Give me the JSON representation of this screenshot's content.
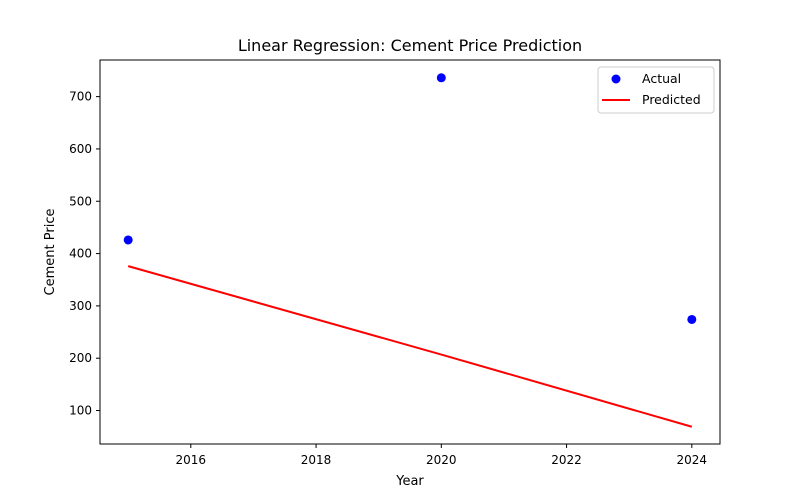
{
  "chart_data": {
    "type": "scatter",
    "title": "Linear Regression: Cement Price Prediction",
    "xlabel": "Year",
    "ylabel": "Cement Price",
    "xlim": [
      2014.55,
      2024.45
    ],
    "ylim": [
      36,
      770
    ],
    "xticks": [
      2016,
      2018,
      2020,
      2022,
      2024
    ],
    "yticks": [
      100,
      200,
      300,
      400,
      500,
      600,
      700
    ],
    "grid": false,
    "legend_position": "top-right",
    "series": [
      {
        "name": "Actual",
        "kind": "scatter",
        "color": "#0000ff",
        "x": [
          2015,
          2020,
          2024
        ],
        "y": [
          426,
          736,
          274
        ]
      },
      {
        "name": "Predicted",
        "kind": "line",
        "color": "#ff0000",
        "x": [
          2015,
          2020,
          2024
        ],
        "y": [
          376,
          207,
          69
        ]
      }
    ]
  }
}
